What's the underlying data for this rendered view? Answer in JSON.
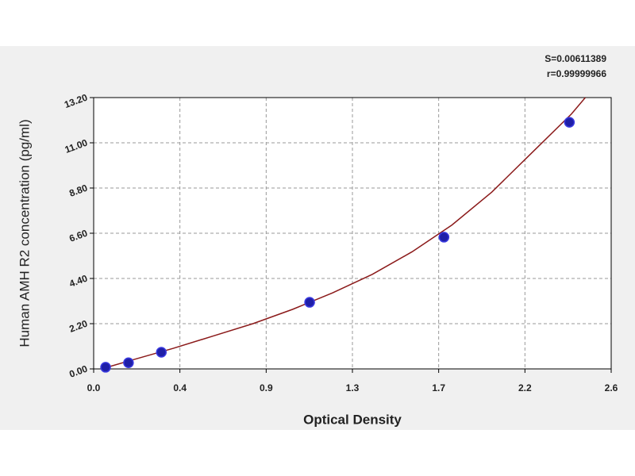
{
  "chart_data": {
    "type": "scatter",
    "x_label": "Optical Density",
    "y_label": "Human AMH R2 concentration (pg/ml)",
    "annotations": [
      "S=0.00611389",
      "r=0.99999966"
    ],
    "xlim": [
      0,
      2.6
    ],
    "ylim": [
      0,
      13.2
    ],
    "xticks": [
      {
        "value": 0,
        "label": "0.0"
      },
      {
        "value": 0.4333,
        "label": "0.4"
      },
      {
        "value": 0.8667,
        "label": "0.9"
      },
      1.3,
      {
        "value": 1.7333,
        "label": "1.7"
      },
      {
        "value": 2.1667,
        "label": "2.2"
      },
      2.6
    ],
    "yticks": [
      {
        "value": 0,
        "label": "0.00"
      },
      {
        "value": 2.2,
        "label": "2.20"
      },
      {
        "value": 4.4,
        "label": "4.40"
      },
      {
        "value": 6.6,
        "label": "6.60"
      },
      {
        "value": 8.8,
        "label": "8.80"
      },
      {
        "value": 11,
        "label": "11.00"
      },
      {
        "value": 13.2,
        "label": "13.20"
      }
    ],
    "grid": true,
    "series": [
      {
        "type": "scatter",
        "color": "#1f1fa8",
        "x": [
          0.06,
          0.175,
          0.34,
          1.085,
          1.76,
          2.39
        ],
        "values": [
          0.08,
          0.3,
          0.81,
          3.24,
          6.41,
          12.0
        ]
      },
      {
        "type": "line",
        "color": "#8b1a1a",
        "x": [
          0.05,
          0.2,
          0.4,
          0.6,
          0.8,
          1.0,
          1.2,
          1.4,
          1.6,
          1.8,
          2.0,
          2.2,
          2.4,
          2.47
        ],
        "values": [
          0.03,
          0.45,
          1.0,
          1.6,
          2.2,
          2.9,
          3.7,
          4.6,
          5.7,
          7.0,
          8.6,
          10.5,
          12.4,
          13.2
        ]
      }
    ]
  }
}
